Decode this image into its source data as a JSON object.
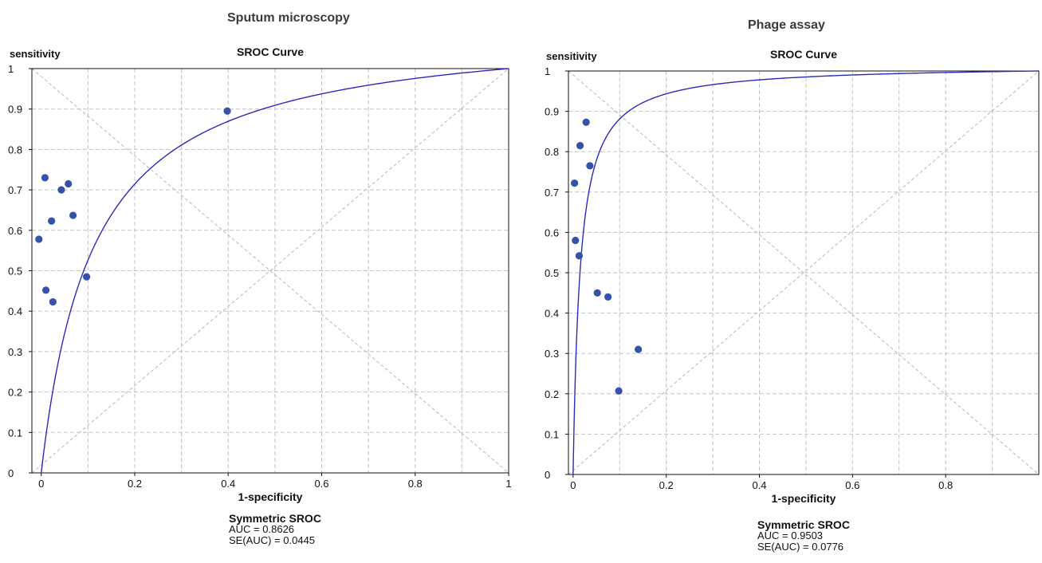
{
  "chart_data": [
    {
      "type": "scatter",
      "figure_title": "Sputum microscopy",
      "title": "SROC Curve",
      "ylabel": "sensitivity",
      "xlabel": "1-specificity",
      "xlim": [
        -0.02,
        1.0
      ],
      "ylim": [
        0,
        1
      ],
      "x_ticks": [
        0,
        0.2,
        0.4,
        0.6,
        0.8,
        1
      ],
      "x_tick_labels": [
        "0",
        "0.2",
        "0.4",
        "0.6",
        "0.8",
        "1"
      ],
      "y_ticks": [
        0,
        0.1,
        0.2,
        0.3,
        0.4,
        0.5,
        0.6,
        0.7,
        0.8,
        0.9,
        1
      ],
      "y_tick_labels": [
        "0",
        "0.1",
        "0.2",
        "0.3",
        "0.4",
        "0.5",
        "0.6",
        "0.7",
        "0.8",
        "0.9",
        "1"
      ],
      "grid": true,
      "curve_b": 0.1,
      "points": [
        {
          "x": -0.005,
          "y": 0.578
        },
        {
          "x": 0.008,
          "y": 0.73
        },
        {
          "x": 0.01,
          "y": 0.452
        },
        {
          "x": 0.022,
          "y": 0.623
        },
        {
          "x": 0.025,
          "y": 0.423
        },
        {
          "x": 0.043,
          "y": 0.7
        },
        {
          "x": 0.058,
          "y": 0.715
        },
        {
          "x": 0.068,
          "y": 0.637
        },
        {
          "x": 0.097,
          "y": 0.485
        },
        {
          "x": 0.398,
          "y": 0.895
        }
      ],
      "stats_heading": "Symmetric SROC",
      "stats_auc": "AUC = 0.8626",
      "stats_se": "SE(AUC) = 0.0445",
      "colors": {
        "curve": "#2b2bb8",
        "points": "#3552a8",
        "grid": "#c2c2c2"
      }
    },
    {
      "type": "scatter",
      "figure_title": "Phage assay",
      "title": "SROC Curve",
      "ylabel": "sensitivity",
      "xlabel": "1-specificity",
      "xlim": [
        -0.01,
        1.0
      ],
      "ylim": [
        0,
        1
      ],
      "x_ticks": [
        0,
        0.2,
        0.4,
        0.6,
        0.8
      ],
      "x_tick_labels": [
        "0",
        "0.2",
        "0.4",
        "0.6",
        "0.8"
      ],
      "y_ticks": [
        0,
        0.1,
        0.2,
        0.3,
        0.4,
        0.5,
        0.6,
        0.7,
        0.8,
        0.9,
        1
      ],
      "y_tick_labels": [
        "0",
        "0.1",
        "0.2",
        "0.3",
        "0.4",
        "0.5",
        "0.6",
        "0.7",
        "0.8",
        "0.9",
        "1"
      ],
      "grid": true,
      "curve_b": 0.015,
      "points": [
        {
          "x": 0.003,
          "y": 0.722
        },
        {
          "x": 0.005,
          "y": 0.58
        },
        {
          "x": 0.013,
          "y": 0.542
        },
        {
          "x": 0.015,
          "y": 0.815
        },
        {
          "x": 0.028,
          "y": 0.873
        },
        {
          "x": 0.036,
          "y": 0.765
        },
        {
          "x": 0.052,
          "y": 0.45
        },
        {
          "x": 0.075,
          "y": 0.44
        },
        {
          "x": 0.098,
          "y": 0.207
        },
        {
          "x": 0.14,
          "y": 0.31
        }
      ],
      "stats_heading": "Symmetric SROC",
      "stats_auc": "AUC = 0.9503",
      "stats_se": "SE(AUC) = 0.0776",
      "colors": {
        "curve": "#2b2bb8",
        "points": "#3552a8",
        "grid": "#c2c2c2"
      }
    }
  ]
}
